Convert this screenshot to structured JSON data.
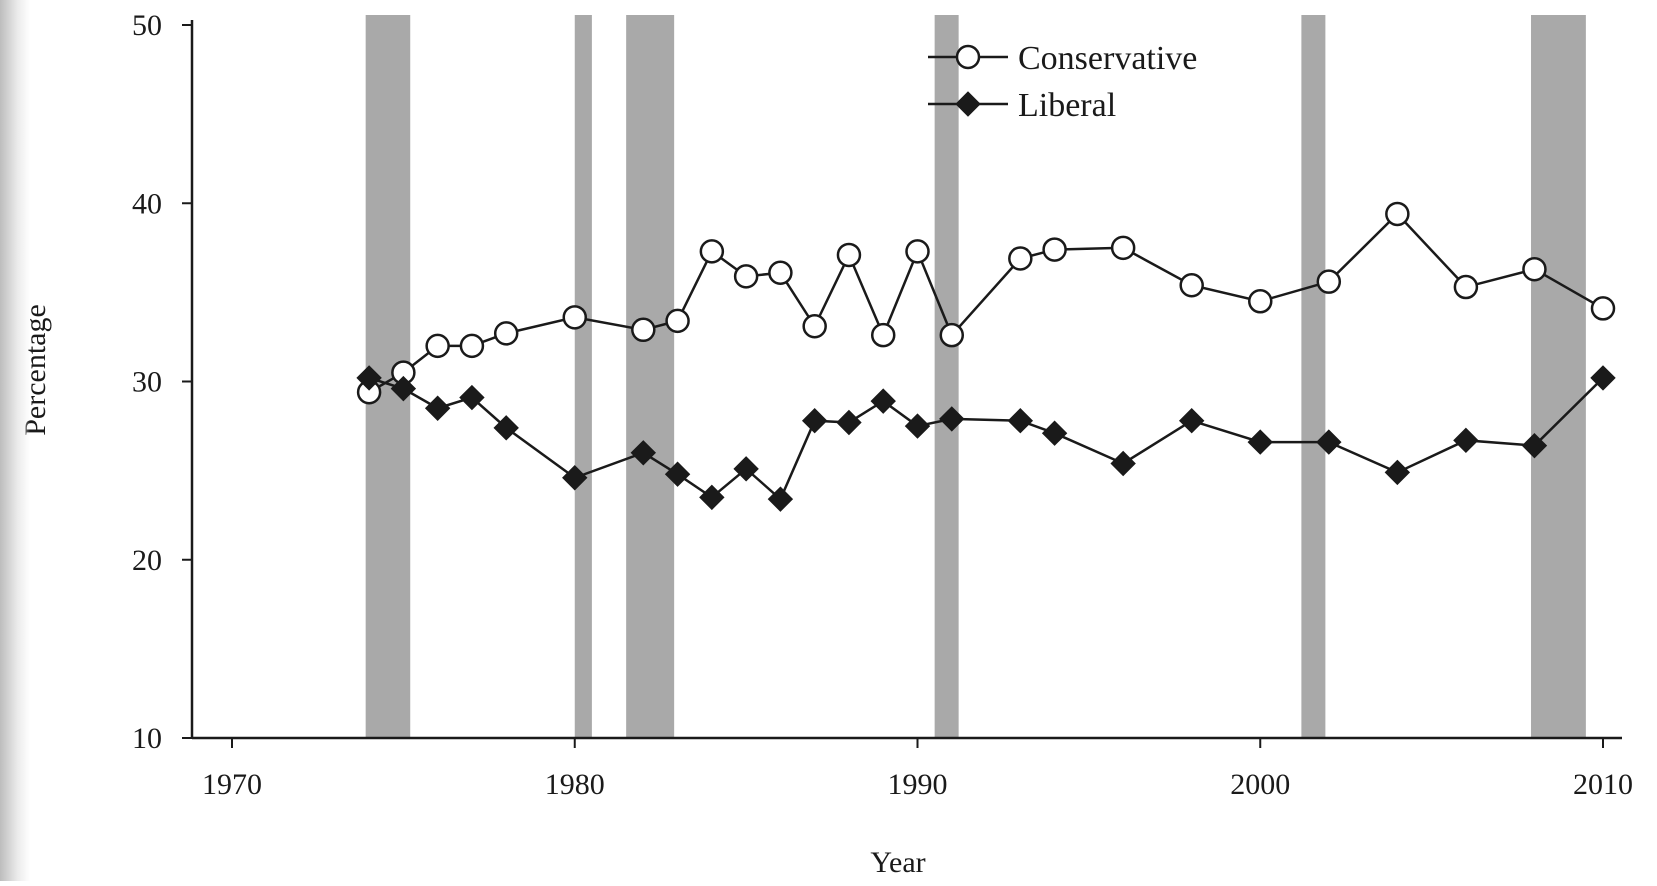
{
  "chart_data": {
    "type": "line",
    "xlabel": "Year",
    "ylabel": "Percentage",
    "xlim": [
      1970,
      2011
    ],
    "ylim": [
      10,
      50
    ],
    "xticks": [
      1970,
      1980,
      1990,
      2000,
      2010
    ],
    "yticks": [
      10,
      20,
      30,
      40,
      50
    ],
    "grid": false,
    "legend_position": "top-center",
    "shaded_periods": [
      [
        1973.9,
        1975.2
      ],
      [
        1980.0,
        1980.5
      ],
      [
        1981.5,
        1982.9
      ],
      [
        1990.5,
        1991.2
      ],
      [
        2001.2,
        2001.9
      ],
      [
        2007.9,
        2009.5
      ]
    ],
    "series": [
      {
        "name": "Conservative",
        "marker": "open-circle",
        "color": "#1a1a1a",
        "points": [
          [
            1974,
            29.4
          ],
          [
            1975,
            30.5
          ],
          [
            1976,
            32.0
          ],
          [
            1977,
            32.0
          ],
          [
            1978,
            32.7
          ],
          [
            1980,
            33.6
          ],
          [
            1982,
            32.9
          ],
          [
            1983,
            33.4
          ],
          [
            1984,
            37.3
          ],
          [
            1985,
            35.9
          ],
          [
            1986,
            36.1
          ],
          [
            1987,
            33.1
          ],
          [
            1988,
            37.1
          ],
          [
            1989,
            32.6
          ],
          [
            1990,
            37.3
          ],
          [
            1991,
            32.6
          ],
          [
            1993,
            36.9
          ],
          [
            1994,
            37.4
          ],
          [
            1996,
            37.5
          ],
          [
            1998,
            35.4
          ],
          [
            2000,
            34.5
          ],
          [
            2002,
            35.6
          ],
          [
            2004,
            39.4
          ],
          [
            2006,
            35.3
          ],
          [
            2008,
            36.3
          ],
          [
            2010,
            34.1
          ]
        ]
      },
      {
        "name": "Liberal",
        "marker": "filled-diamond",
        "color": "#1a1a1a",
        "points": [
          [
            1974,
            30.2
          ],
          [
            1975,
            29.6
          ],
          [
            1976,
            28.5
          ],
          [
            1977,
            29.1
          ],
          [
            1978,
            27.4
          ],
          [
            1980,
            24.6
          ],
          [
            1982,
            26.0
          ],
          [
            1983,
            24.8
          ],
          [
            1984,
            23.5
          ],
          [
            1985,
            25.1
          ],
          [
            1986,
            23.4
          ],
          [
            1987,
            27.8
          ],
          [
            1988,
            27.7
          ],
          [
            1989,
            28.9
          ],
          [
            1990,
            27.5
          ],
          [
            1991,
            27.9
          ],
          [
            1993,
            27.8
          ],
          [
            1994,
            27.1
          ],
          [
            1996,
            25.4
          ],
          [
            1998,
            27.8
          ],
          [
            2000,
            26.6
          ],
          [
            2002,
            26.6
          ],
          [
            2004,
            24.9
          ],
          [
            2006,
            26.7
          ],
          [
            2008,
            26.4
          ],
          [
            2010,
            30.2
          ]
        ]
      }
    ]
  }
}
